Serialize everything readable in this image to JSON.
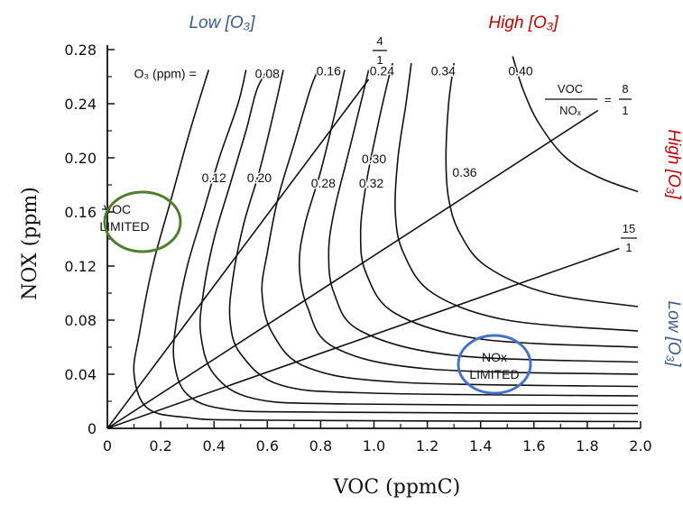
{
  "colors": {
    "low": "#3d5a8c",
    "high": "#c00000",
    "voc_circle": "#4e7f2d",
    "nox_circle": "#4472c4"
  },
  "chart_data": {
    "type": "line",
    "xlabel": "VOC (ppmC)",
    "ylabel": "NOX (ppm)",
    "xlim": [
      0,
      2.0
    ],
    "ylim": [
      0,
      0.28
    ],
    "x_ticks": [
      "0",
      "0.2",
      "0.4",
      "0.6",
      "0.8",
      "1.0",
      "1.2",
      "1.4",
      "1.6",
      "1.8",
      "2.0"
    ],
    "y_ticks": [
      "0",
      "0.04",
      "0.08",
      "0.12",
      "0.16",
      "0.20",
      "0.24",
      "0.28"
    ],
    "grid": false,
    "iso_prefix": "O₃ (ppm) =",
    "isopleths": [
      {
        "label": "0.08",
        "points": [
          [
            1.99,
            0.005
          ],
          [
            0.6,
            0.006
          ],
          [
            0.3,
            0.008
          ],
          [
            0.15,
            0.015
          ],
          [
            0.1,
            0.04
          ],
          [
            0.12,
            0.07
          ],
          [
            0.17,
            0.12
          ],
          [
            0.24,
            0.17
          ],
          [
            0.31,
            0.22
          ],
          [
            0.38,
            0.265
          ]
        ]
      },
      {
        "label": "0.12",
        "points": [
          [
            1.99,
            0.011
          ],
          [
            0.8,
            0.012
          ],
          [
            0.45,
            0.014
          ],
          [
            0.3,
            0.025
          ],
          [
            0.25,
            0.05
          ],
          [
            0.26,
            0.08
          ],
          [
            0.3,
            0.12
          ],
          [
            0.36,
            0.16
          ],
          [
            0.42,
            0.2
          ],
          [
            0.49,
            0.24
          ],
          [
            0.52,
            0.265
          ]
        ]
      },
      {
        "label": "0.16",
        "points": [
          [
            1.99,
            0.017
          ],
          [
            0.9,
            0.018
          ],
          [
            0.55,
            0.022
          ],
          [
            0.4,
            0.04
          ],
          [
            0.35,
            0.07
          ],
          [
            0.36,
            0.1
          ],
          [
            0.4,
            0.14
          ],
          [
            0.46,
            0.18
          ],
          [
            0.52,
            0.22
          ],
          [
            0.56,
            0.25
          ],
          [
            0.6,
            0.265
          ]
        ]
      },
      {
        "label": "0.20",
        "points": [
          [
            1.99,
            0.024
          ],
          [
            1.0,
            0.026
          ],
          [
            0.65,
            0.032
          ],
          [
            0.5,
            0.055
          ],
          [
            0.46,
            0.08
          ],
          [
            0.47,
            0.11
          ],
          [
            0.51,
            0.15
          ],
          [
            0.57,
            0.19
          ],
          [
            0.62,
            0.23
          ],
          [
            0.66,
            0.265
          ]
        ]
      },
      {
        "label": "0.24",
        "points": [
          [
            1.99,
            0.031
          ],
          [
            1.1,
            0.034
          ],
          [
            0.75,
            0.045
          ],
          [
            0.62,
            0.07
          ],
          [
            0.58,
            0.1
          ],
          [
            0.6,
            0.13
          ],
          [
            0.64,
            0.17
          ],
          [
            0.7,
            0.21
          ],
          [
            0.76,
            0.25
          ],
          [
            0.79,
            0.265
          ]
        ]
      },
      {
        "label": "0.28",
        "points": [
          [
            1.99,
            0.04
          ],
          [
            1.2,
            0.044
          ],
          [
            0.85,
            0.06
          ],
          [
            0.75,
            0.09
          ],
          [
            0.72,
            0.12
          ],
          [
            0.74,
            0.15
          ],
          [
            0.8,
            0.19
          ],
          [
            0.85,
            0.23
          ],
          [
            0.89,
            0.265
          ]
        ]
      },
      {
        "label": "0.30",
        "points": [
          [
            1.99,
            0.049
          ],
          [
            1.3,
            0.054
          ],
          [
            0.95,
            0.072
          ],
          [
            0.85,
            0.1
          ],
          [
            0.83,
            0.13
          ],
          [
            0.85,
            0.16
          ],
          [
            0.9,
            0.2
          ],
          [
            0.95,
            0.24
          ],
          [
            0.98,
            0.265
          ]
        ]
      },
      {
        "label": "0.32",
        "points": [
          [
            1.99,
            0.06
          ],
          [
            1.4,
            0.066
          ],
          [
            1.08,
            0.085
          ],
          [
            0.97,
            0.115
          ],
          [
            0.95,
            0.145
          ],
          [
            0.97,
            0.18
          ],
          [
            1.01,
            0.22
          ],
          [
            1.05,
            0.255
          ],
          [
            1.07,
            0.27
          ]
        ]
      },
      {
        "label": "0.34",
        "points": [
          [
            1.99,
            0.072
          ],
          [
            1.5,
            0.08
          ],
          [
            1.22,
            0.1
          ],
          [
            1.11,
            0.13
          ],
          [
            1.08,
            0.16
          ],
          [
            1.09,
            0.2
          ],
          [
            1.12,
            0.24
          ],
          [
            1.14,
            0.27
          ]
        ]
      },
      {
        "label": "0.36",
        "points": [
          [
            1.99,
            0.09
          ],
          [
            1.65,
            0.1
          ],
          [
            1.42,
            0.12
          ],
          [
            1.32,
            0.145
          ],
          [
            1.28,
            0.17
          ],
          [
            1.27,
            0.2
          ],
          [
            1.28,
            0.24
          ],
          [
            1.3,
            0.27
          ]
        ]
      },
      {
        "label": "0.40",
        "points": [
          [
            1.99,
            0.175
          ],
          [
            1.85,
            0.185
          ],
          [
            1.72,
            0.2
          ],
          [
            1.62,
            0.225
          ],
          [
            1.56,
            0.25
          ],
          [
            1.52,
            0.275
          ]
        ]
      }
    ],
    "ratio_lines": [
      {
        "numerator": "4",
        "denominator": "1",
        "points": [
          [
            0,
            0
          ],
          [
            0.98,
            0.258
          ]
        ]
      },
      {
        "numerator": "8",
        "denominator": "1",
        "points": [
          [
            0,
            0
          ],
          [
            1.84,
            0.235
          ]
        ]
      },
      {
        "numerator": "15",
        "denominator": "1",
        "points": [
          [
            0,
            0
          ],
          [
            1.92,
            0.133
          ]
        ]
      }
    ],
    "ratio_formula": {
      "numerator": "VOC",
      "denominator": "NOₓ",
      "equals": "="
    },
    "regions": {
      "voc_limited": [
        "VOC",
        "LIMITED"
      ],
      "nox_limited": [
        "NOx",
        "LIMITED"
      ]
    },
    "corner_labels": {
      "top_left": "Low [O₃]",
      "top_right": "High [O₃]",
      "right_top": "High [O₃]",
      "right_bottom": "Low [O₃]"
    }
  }
}
